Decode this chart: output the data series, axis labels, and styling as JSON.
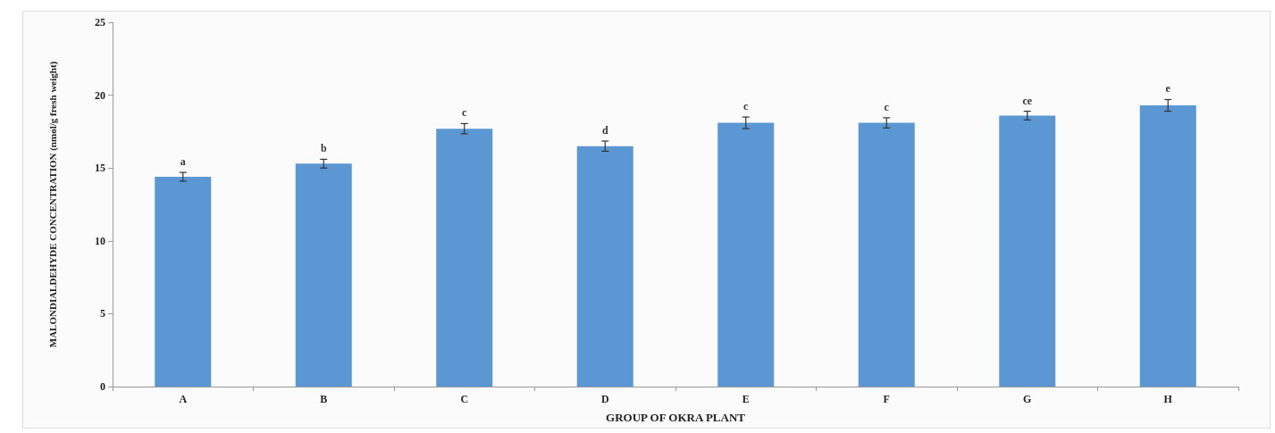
{
  "chart_data": {
    "type": "bar",
    "xlabel": "GROUP OF OKRA PLANT",
    "ylabel": "MALONDIALDEHYDE CONCENTRATION (nmol/g fresh weight)",
    "categories": [
      "A",
      "B",
      "C",
      "D",
      "E",
      "F",
      "G",
      "H"
    ],
    "values": [
      14.4,
      15.3,
      17.7,
      16.5,
      18.1,
      18.1,
      18.6,
      19.3
    ],
    "errors": [
      0.3,
      0.3,
      0.35,
      0.35,
      0.4,
      0.35,
      0.3,
      0.4
    ],
    "color": "#5b97d2",
    "ylim": [
      0,
      25
    ],
    "yticks": [
      0,
      5,
      10,
      15,
      20,
      25
    ],
    "grid": false,
    "annotations": [
      {
        "text": "a",
        "x": "A",
        "y": 14.4
      },
      {
        "text": "b",
        "x": "B",
        "y": 15.3
      },
      {
        "text": "c",
        "x": "C",
        "y": 17.7
      },
      {
        "text": "d",
        "x": "D",
        "y": 16.5
      },
      {
        "text": "c",
        "x": "E",
        "y": 18.1
      },
      {
        "text": "c",
        "x": "F",
        "y": 18.1
      },
      {
        "text": "ce",
        "x": "G",
        "y": 18.6
      },
      {
        "text": "e",
        "x": "H",
        "y": 19.3
      }
    ]
  }
}
